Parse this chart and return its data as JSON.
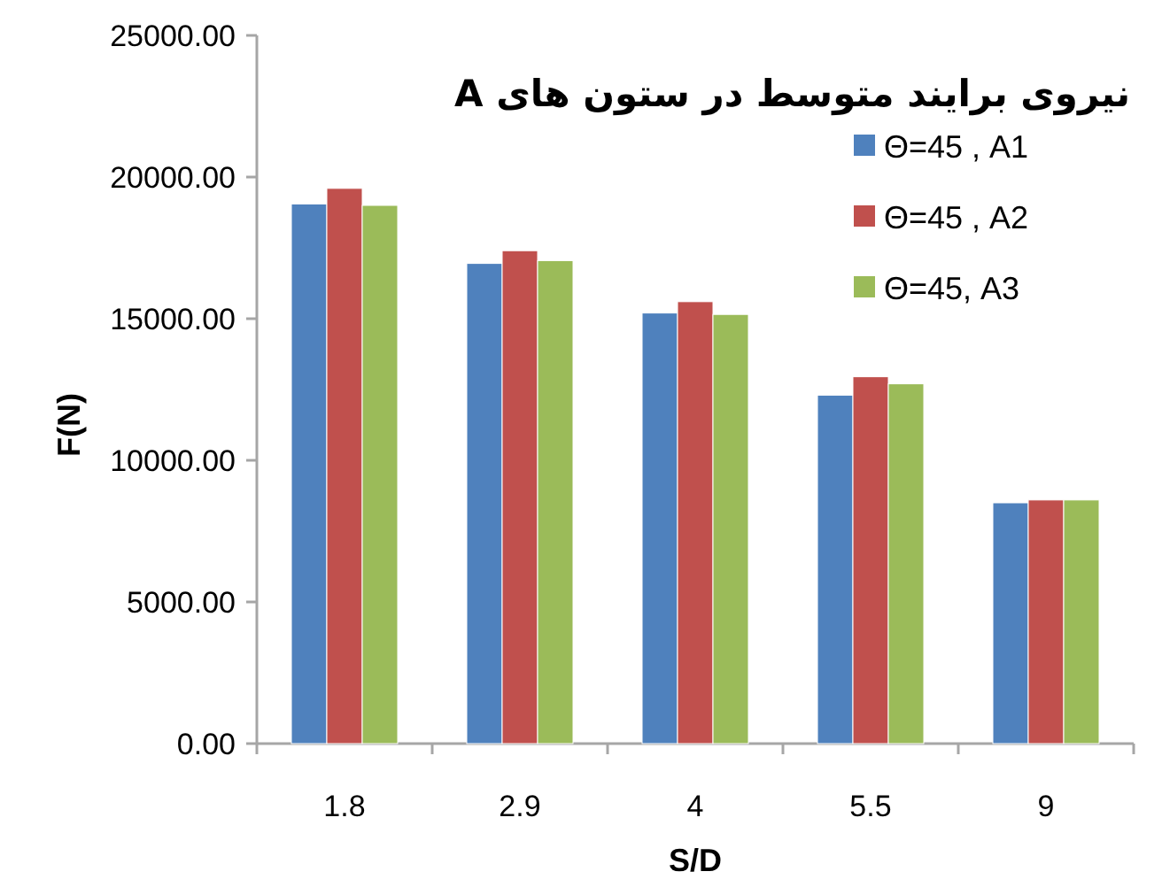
{
  "chart_data": {
    "type": "bar",
    "title": "نیروی برایند متوسط در ستون های A",
    "xlabel": "S/D",
    "ylabel": "F(N)",
    "categories": [
      "1.8",
      "2.9",
      "4",
      "5.5",
      "9"
    ],
    "series": [
      {
        "name": "Θ=45 , A1",
        "color": "#4f81bd",
        "values": [
          19050,
          16950,
          15200,
          12300,
          8500
        ]
      },
      {
        "name": "Θ=45 , A2",
        "color": "#c0504d",
        "values": [
          19600,
          17400,
          15600,
          12950,
          8600
        ]
      },
      {
        "name": "Θ=45, A3",
        "color": "#9bbb59",
        "values": [
          19000,
          17050,
          15150,
          12700,
          8600
        ]
      }
    ],
    "ylim": [
      0,
      25000
    ],
    "yticks": [
      {
        "value": 0,
        "label": "0.00"
      },
      {
        "value": 5000,
        "label": "5000.00"
      },
      {
        "value": 10000,
        "label": "10000.00"
      },
      {
        "value": 15000,
        "label": "15000.00"
      },
      {
        "value": 20000,
        "label": "20000.00"
      },
      {
        "value": 25000,
        "label": "25000.00"
      }
    ],
    "legend": "top right"
  }
}
